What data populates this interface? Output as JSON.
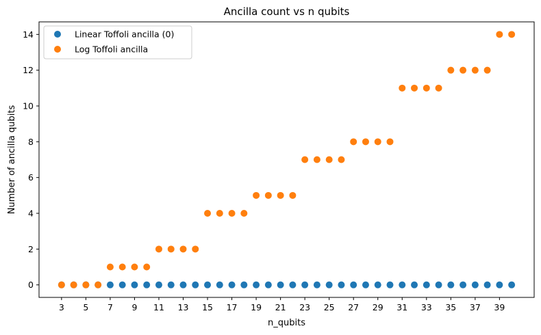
{
  "chart_data": {
    "type": "scatter",
    "title": "Ancilla count vs n qubits",
    "xlabel": "n_qubits",
    "ylabel": "Number of ancilla qubits",
    "xlim": [
      1.15,
      41.85
    ],
    "ylim": [
      -0.7,
      14.7
    ],
    "x_ticks": [
      3,
      5,
      7,
      9,
      11,
      13,
      15,
      17,
      19,
      21,
      23,
      25,
      27,
      29,
      31,
      33,
      35,
      37,
      39
    ],
    "y_ticks": [
      0,
      2,
      4,
      6,
      8,
      10,
      12,
      14
    ],
    "grid": false,
    "legend_position": "upper-left",
    "x": [
      3,
      4,
      5,
      6,
      7,
      8,
      9,
      10,
      11,
      12,
      13,
      14,
      15,
      16,
      17,
      18,
      19,
      20,
      21,
      22,
      23,
      24,
      25,
      26,
      27,
      28,
      29,
      30,
      31,
      32,
      33,
      34,
      35,
      36,
      37,
      38,
      39,
      40
    ],
    "series": [
      {
        "name": "Linear Toffoli ancilla (0)",
        "color": "#1f77b4",
        "values": [
          0,
          0,
          0,
          0,
          0,
          0,
          0,
          0,
          0,
          0,
          0,
          0,
          0,
          0,
          0,
          0,
          0,
          0,
          0,
          0,
          0,
          0,
          0,
          0,
          0,
          0,
          0,
          0,
          0,
          0,
          0,
          0,
          0,
          0,
          0,
          0,
          0,
          0
        ]
      },
      {
        "name": "Log Toffoli ancilla",
        "color": "#ff7f0e",
        "values": [
          0,
          0,
          0,
          0,
          1,
          1,
          1,
          1,
          2,
          2,
          2,
          2,
          4,
          4,
          4,
          4,
          5,
          5,
          5,
          5,
          7,
          7,
          7,
          7,
          8,
          8,
          8,
          8,
          11,
          11,
          11,
          11,
          12,
          12,
          12,
          12,
          14,
          14
        ]
      }
    ]
  }
}
